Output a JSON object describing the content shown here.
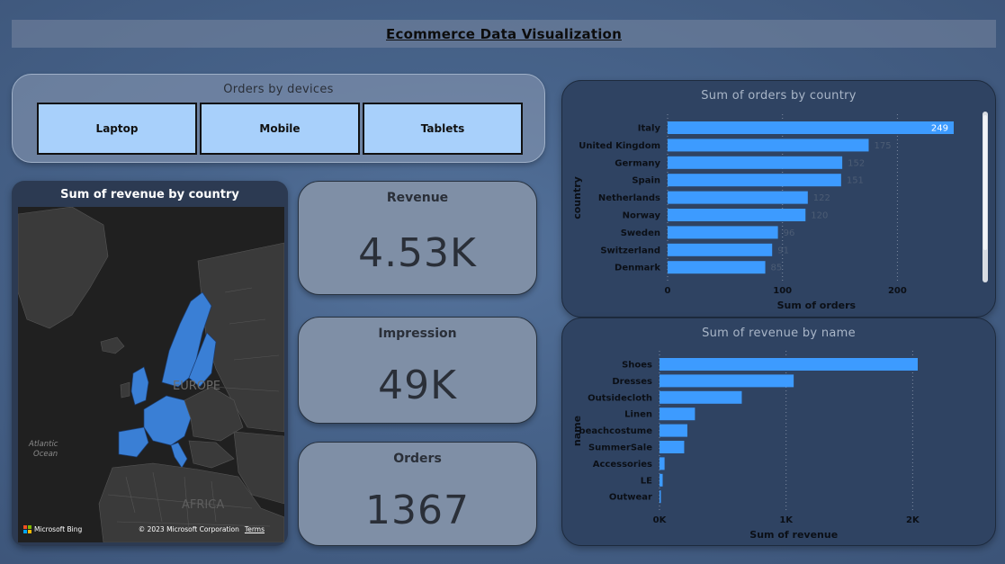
{
  "header": {
    "title": "Ecommerce Data Visualization"
  },
  "devices": {
    "title": "Orders by devices",
    "buttons": [
      "Laptop",
      "Mobile",
      "Tablets"
    ]
  },
  "map": {
    "title": "Sum of revenue by country",
    "labels": {
      "continent_europe": "EUROPE",
      "ocean": "Atlantic Ocean",
      "continent_africa": "AFRICA"
    },
    "attribution": {
      "provider": "Microsoft Bing",
      "copyright": "© 2023 Microsoft Corporation",
      "terms": "Terms"
    },
    "highlight_color": "#3a7fd5"
  },
  "kpis": [
    {
      "label": "Revenue",
      "value": "4.53K"
    },
    {
      "label": "Impression",
      "value": "49K"
    },
    {
      "label": "Orders",
      "value": "1367"
    }
  ],
  "colors": {
    "bar": "#3d9bff",
    "accent_button": "#a8d0fb"
  },
  "chart_data": [
    {
      "type": "bar",
      "orientation": "horizontal",
      "title": "Sum of orders by country",
      "xlabel": "Sum of orders",
      "ylabel": "country",
      "categories": [
        "Italy",
        "United Kingdom",
        "Germany",
        "Spain",
        "Netherlands",
        "Norway",
        "Sweden",
        "Switzerland",
        "Denmark"
      ],
      "values": [
        249,
        175,
        152,
        151,
        122,
        120,
        96,
        91,
        85
      ],
      "data_labels": [
        "249",
        "175",
        "152",
        "151",
        "122",
        "120",
        "96",
        "91",
        "85"
      ],
      "xticks": [
        "0",
        "100",
        "200"
      ],
      "xlim": [
        0,
        249
      ],
      "grid": true
    },
    {
      "type": "bar",
      "orientation": "horizontal",
      "title": "Sum of revenue by name",
      "xlabel": "Sum of revenue",
      "ylabel": "name",
      "categories": [
        "Shoes",
        "Dresses",
        "Outsidecloth",
        "Linen",
        "beachcostume",
        "SummerSale",
        "Accessories",
        "LE",
        "Outwear"
      ],
      "values": [
        2040,
        1060,
        650,
        280,
        220,
        195,
        40,
        25,
        5
      ],
      "xticks": [
        "0K",
        "1K",
        "2K"
      ],
      "xlim": [
        0,
        2040
      ],
      "grid": true
    }
  ]
}
